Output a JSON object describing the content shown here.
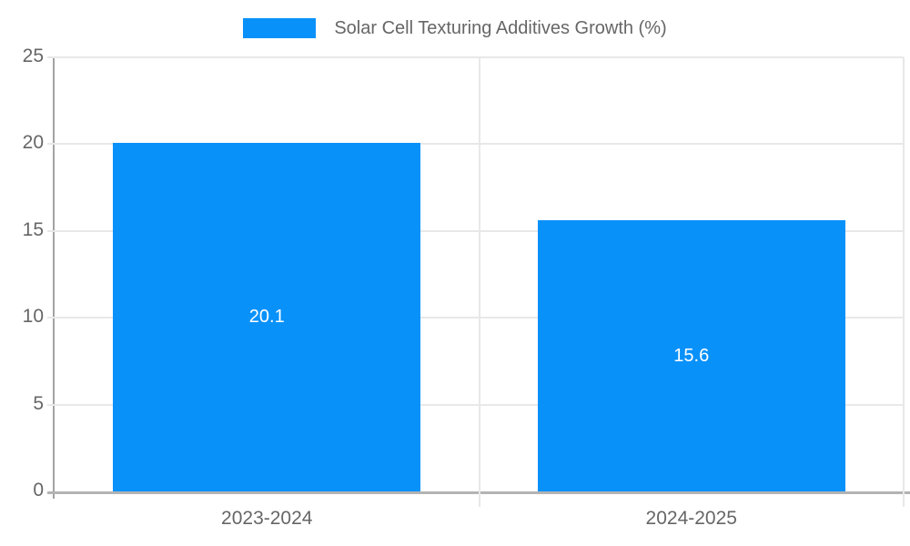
{
  "chart_data": {
    "type": "bar",
    "title": "Solar Cell Texturing Additives Growth (%)",
    "categories": [
      "2023-2024",
      "2024-2025"
    ],
    "values": [
      20.1,
      15.6
    ],
    "value_labels": [
      "20.1",
      "15.6"
    ],
    "xlabel": "",
    "ylabel": "",
    "ylim": [
      0,
      25
    ],
    "yticks": [
      0,
      5,
      10,
      15,
      20,
      25
    ],
    "grid": true,
    "legend_position": "top-center",
    "value_label_position": "center-of-bar",
    "colors": {
      "bar": "#0991fa",
      "value_label": "#ffffff",
      "title_text": "#666666",
      "tick_text": "#666666",
      "axis_line": "#a3a3a3",
      "baseline": "#b3b3b3",
      "gridline": "#e8e8e8",
      "background": "#ffffff"
    }
  }
}
